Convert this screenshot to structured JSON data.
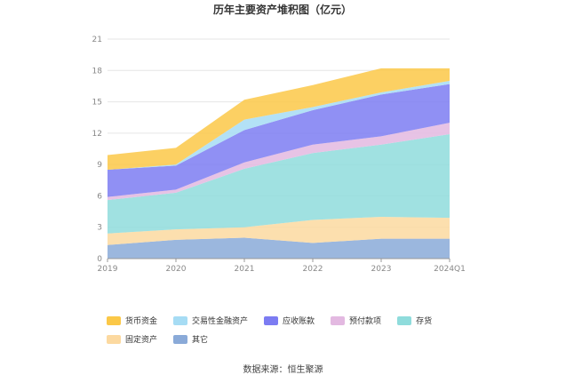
{
  "chart_data": {
    "type": "area",
    "stacked": true,
    "title": "历年主要资产堆积图（亿元）",
    "categories": [
      "2019",
      "2020",
      "2021",
      "2022",
      "2023",
      "2024Q1"
    ],
    "ylim": [
      0,
      21
    ],
    "yticks": [
      0,
      3,
      6,
      9,
      12,
      15,
      18,
      21
    ],
    "grid": true,
    "legend_position": "bottom",
    "series": [
      {
        "name": "其它",
        "color": "#8aaad8",
        "values": [
          1.3,
          1.8,
          2.0,
          1.5,
          1.9,
          1.9
        ]
      },
      {
        "name": "固定资产",
        "color": "#fcd9a0",
        "values": [
          1.1,
          1.0,
          1.0,
          2.2,
          2.1,
          2.0
        ]
      },
      {
        "name": "存货",
        "color": "#8fdcdc",
        "values": [
          3.2,
          3.5,
          5.6,
          6.4,
          6.9,
          8.0
        ]
      },
      {
        "name": "预付款项",
        "color": "#e3b9e1",
        "values": [
          0.3,
          0.3,
          0.6,
          0.8,
          0.8,
          1.1
        ]
      },
      {
        "name": "应收账款",
        "color": "#7c7cf2",
        "values": [
          2.6,
          2.3,
          3.1,
          3.3,
          4.0,
          3.7
        ]
      },
      {
        "name": "交易性金融资产",
        "color": "#a6dcf4",
        "values": [
          0.0,
          0.1,
          1.0,
          0.3,
          0.2,
          0.3
        ]
      },
      {
        "name": "货币资金",
        "color": "#fbc848",
        "values": [
          1.4,
          1.6,
          1.9,
          2.1,
          2.3,
          1.2
        ]
      }
    ]
  },
  "legend_order": [
    "货币资金",
    "交易性金融资产",
    "应收账款",
    "预付款项",
    "存货",
    "固定资产",
    "其它"
  ],
  "legend_labels": {
    "l0": "货币资金",
    "l1": "交易性金融资产",
    "l2": "应收账款",
    "l3": "预付款项",
    "l4": "存货",
    "l5": "固定资产",
    "l6": "其它"
  },
  "legend_colors": {
    "l0": "#fbc848",
    "l1": "#a6dcf4",
    "l2": "#7c7cf2",
    "l3": "#e3b9e1",
    "l4": "#8fdcdc",
    "l5": "#fcd9a0",
    "l6": "#8aaad8"
  },
  "source": "数据来源：恒生聚源"
}
